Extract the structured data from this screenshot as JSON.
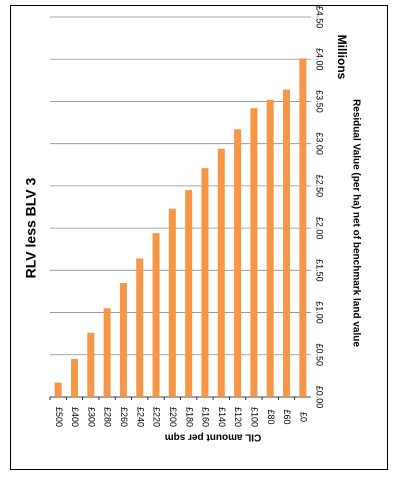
{
  "chart_data": {
    "type": "bar",
    "orientation": "horizontal",
    "title": "RLV less BLV 3",
    "xlabel": "CIL amount per sqm",
    "ylabel": "Residual Value (per ha) net of benchmark land value",
    "units_label": "Millions",
    "categories": [
      "£500",
      "£400",
      "£300",
      "£280",
      "£260",
      "£240",
      "£220",
      "£200",
      "£180",
      "£160",
      "£140",
      "£120",
      "£100",
      "£80",
      "£60",
      "£0"
    ],
    "values": [
      0.17,
      0.45,
      0.76,
      1.05,
      1.35,
      1.64,
      1.94,
      2.23,
      2.45,
      2.71,
      2.94,
      3.17,
      3.42,
      3.52,
      3.64,
      4.01
    ],
    "value_ticks": [
      "£0.00",
      "£0.50",
      "£1.00",
      "£1.50",
      "£2.00",
      "£2.50",
      "£3.00",
      "£3.50",
      "£4.00",
      "£4.50"
    ],
    "ylim": [
      0,
      4.5
    ],
    "grid": true,
    "legend": "none",
    "bar_color": "#F79646"
  }
}
